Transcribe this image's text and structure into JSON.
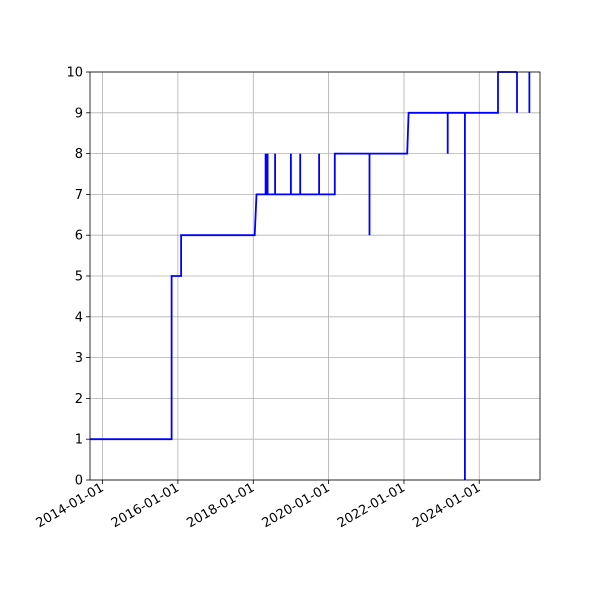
{
  "chart_data": {
    "type": "line",
    "title": "",
    "xlabel": "",
    "ylabel": "",
    "x_axis_type": "date",
    "xlim": [
      "2013-09-01",
      "2025-01-01"
    ],
    "ylim": [
      0,
      10
    ],
    "grid": true,
    "legend": "none",
    "x_ticks": [
      "2014-01-01",
      "2016-01-01",
      "2018-01-01",
      "2020-01-01",
      "2022-01-01",
      "2024-01-01"
    ],
    "y_ticks": [
      0,
      1,
      2,
      3,
      4,
      5,
      6,
      7,
      8,
      9,
      10
    ],
    "line_color": "#0000ff",
    "series": [
      {
        "x": [
          "2013-09-01",
          "2015-11-01",
          "2015-11-01",
          "2016-02-01",
          "2016-02-01",
          "2018-01-15",
          "2018-02-01",
          "2018-05-01",
          "2018-05-01",
          "2018-05-01",
          "2018-05-10",
          "2018-05-10",
          "2018-05-10",
          "2018-05-20",
          "2018-05-20",
          "2018-05-20",
          "2018-08-01",
          "2018-08-01",
          "2018-08-01",
          "2019-01-01",
          "2019-01-01",
          "2019-01-01",
          "2019-04-01",
          "2019-04-01",
          "2019-04-01",
          "2019-10-01",
          "2019-10-01",
          "2019-10-01",
          "2020-03-01",
          "2020-03-01",
          "2021-02-01",
          "2021-02-01",
          "2021-02-01",
          "2022-02-01",
          "2022-02-15",
          "2023-03-01",
          "2023-03-01",
          "2023-03-01",
          "2023-08-15",
          "2023-08-15",
          "2023-08-15",
          "2024-07-01",
          "2024-07-01",
          "2024-07-01",
          "2024-07-01",
          "2025-01-01"
        ],
        "y": [
          1,
          1,
          5,
          5,
          6,
          6,
          7,
          7,
          8,
          7,
          7,
          8,
          7,
          7,
          8,
          7,
          7,
          8,
          7,
          7,
          8,
          7,
          7,
          8,
          7,
          7,
          8,
          7,
          7,
          8,
          8,
          6,
          8,
          8,
          9,
          9,
          8,
          9,
          9,
          0,
          9,
          9,
          10,
          10,
          10,
          10
        ]
      }
    ],
    "vertical_spikes": [
      {
        "x": "2025-01-01",
        "from": 10,
        "to": 9
      },
      {
        "x": "2025-05-01",
        "from": 10,
        "to": 9
      }
    ]
  }
}
